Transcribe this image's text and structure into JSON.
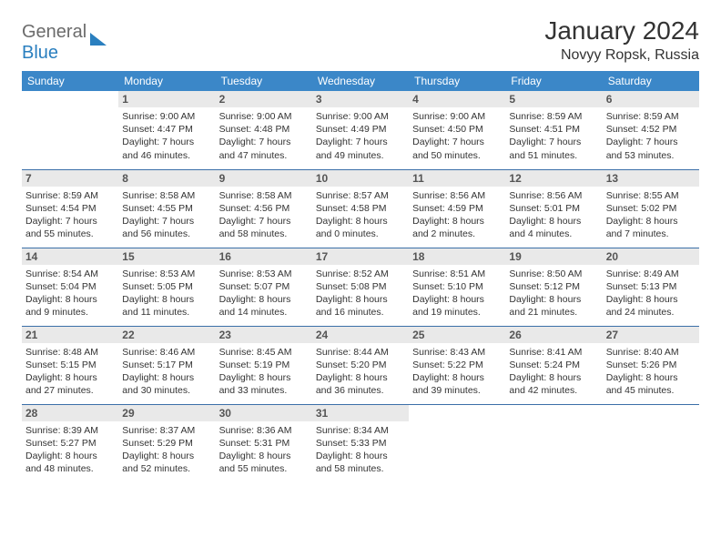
{
  "brand": {
    "part1": "General",
    "part2": "Blue"
  },
  "title": "January 2024",
  "location": "Novyy Ropsk, Russia",
  "colors": {
    "header_bg": "#3b87c8",
    "header_text": "#ffffff",
    "daynum_bg": "#e9e9e9",
    "row_border": "#3b6fa8",
    "logo_gray": "#6b6b6b",
    "logo_blue": "#2a7fbf"
  },
  "weekdays": [
    "Sunday",
    "Monday",
    "Tuesday",
    "Wednesday",
    "Thursday",
    "Friday",
    "Saturday"
  ],
  "layout": {
    "first_weekday_index": 1,
    "days_in_month": 31
  },
  "days": {
    "1": {
      "sunrise": "9:00 AM",
      "sunset": "4:47 PM",
      "daylight": "7 hours and 46 minutes."
    },
    "2": {
      "sunrise": "9:00 AM",
      "sunset": "4:48 PM",
      "daylight": "7 hours and 47 minutes."
    },
    "3": {
      "sunrise": "9:00 AM",
      "sunset": "4:49 PM",
      "daylight": "7 hours and 49 minutes."
    },
    "4": {
      "sunrise": "9:00 AM",
      "sunset": "4:50 PM",
      "daylight": "7 hours and 50 minutes."
    },
    "5": {
      "sunrise": "8:59 AM",
      "sunset": "4:51 PM",
      "daylight": "7 hours and 51 minutes."
    },
    "6": {
      "sunrise": "8:59 AM",
      "sunset": "4:52 PM",
      "daylight": "7 hours and 53 minutes."
    },
    "7": {
      "sunrise": "8:59 AM",
      "sunset": "4:54 PM",
      "daylight": "7 hours and 55 minutes."
    },
    "8": {
      "sunrise": "8:58 AM",
      "sunset": "4:55 PM",
      "daylight": "7 hours and 56 minutes."
    },
    "9": {
      "sunrise": "8:58 AM",
      "sunset": "4:56 PM",
      "daylight": "7 hours and 58 minutes."
    },
    "10": {
      "sunrise": "8:57 AM",
      "sunset": "4:58 PM",
      "daylight": "8 hours and 0 minutes."
    },
    "11": {
      "sunrise": "8:56 AM",
      "sunset": "4:59 PM",
      "daylight": "8 hours and 2 minutes."
    },
    "12": {
      "sunrise": "8:56 AM",
      "sunset": "5:01 PM",
      "daylight": "8 hours and 4 minutes."
    },
    "13": {
      "sunrise": "8:55 AM",
      "sunset": "5:02 PM",
      "daylight": "8 hours and 7 minutes."
    },
    "14": {
      "sunrise": "8:54 AM",
      "sunset": "5:04 PM",
      "daylight": "8 hours and 9 minutes."
    },
    "15": {
      "sunrise": "8:53 AM",
      "sunset": "5:05 PM",
      "daylight": "8 hours and 11 minutes."
    },
    "16": {
      "sunrise": "8:53 AM",
      "sunset": "5:07 PM",
      "daylight": "8 hours and 14 minutes."
    },
    "17": {
      "sunrise": "8:52 AM",
      "sunset": "5:08 PM",
      "daylight": "8 hours and 16 minutes."
    },
    "18": {
      "sunrise": "8:51 AM",
      "sunset": "5:10 PM",
      "daylight": "8 hours and 19 minutes."
    },
    "19": {
      "sunrise": "8:50 AM",
      "sunset": "5:12 PM",
      "daylight": "8 hours and 21 minutes."
    },
    "20": {
      "sunrise": "8:49 AM",
      "sunset": "5:13 PM",
      "daylight": "8 hours and 24 minutes."
    },
    "21": {
      "sunrise": "8:48 AM",
      "sunset": "5:15 PM",
      "daylight": "8 hours and 27 minutes."
    },
    "22": {
      "sunrise": "8:46 AM",
      "sunset": "5:17 PM",
      "daylight": "8 hours and 30 minutes."
    },
    "23": {
      "sunrise": "8:45 AM",
      "sunset": "5:19 PM",
      "daylight": "8 hours and 33 minutes."
    },
    "24": {
      "sunrise": "8:44 AM",
      "sunset": "5:20 PM",
      "daylight": "8 hours and 36 minutes."
    },
    "25": {
      "sunrise": "8:43 AM",
      "sunset": "5:22 PM",
      "daylight": "8 hours and 39 minutes."
    },
    "26": {
      "sunrise": "8:41 AM",
      "sunset": "5:24 PM",
      "daylight": "8 hours and 42 minutes."
    },
    "27": {
      "sunrise": "8:40 AM",
      "sunset": "5:26 PM",
      "daylight": "8 hours and 45 minutes."
    },
    "28": {
      "sunrise": "8:39 AM",
      "sunset": "5:27 PM",
      "daylight": "8 hours and 48 minutes."
    },
    "29": {
      "sunrise": "8:37 AM",
      "sunset": "5:29 PM",
      "daylight": "8 hours and 52 minutes."
    },
    "30": {
      "sunrise": "8:36 AM",
      "sunset": "5:31 PM",
      "daylight": "8 hours and 55 minutes."
    },
    "31": {
      "sunrise": "8:34 AM",
      "sunset": "5:33 PM",
      "daylight": "8 hours and 58 minutes."
    }
  },
  "labels": {
    "sunrise_prefix": "Sunrise: ",
    "sunset_prefix": "Sunset: ",
    "daylight_prefix": "Daylight: "
  }
}
